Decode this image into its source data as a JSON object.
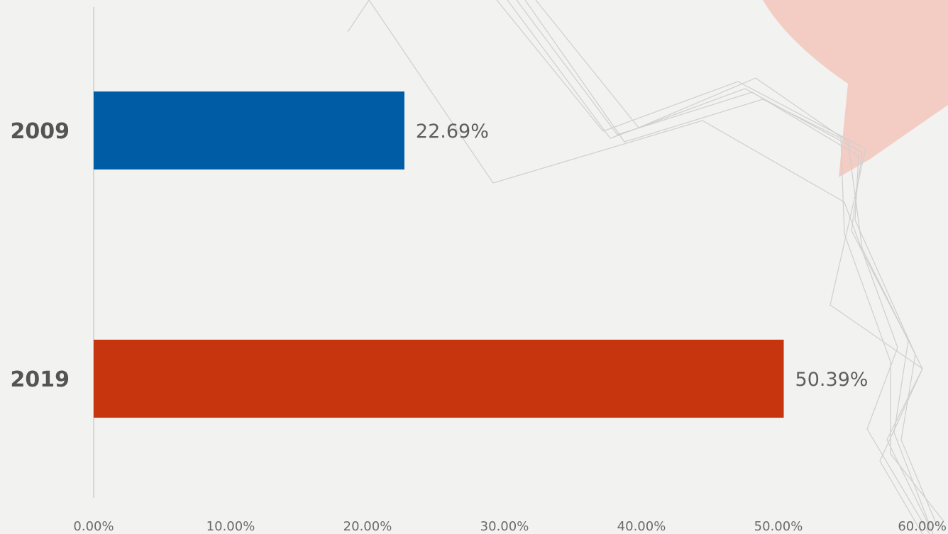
{
  "chart_data": {
    "type": "bar",
    "orientation": "horizontal",
    "categories": [
      "2009",
      "2019"
    ],
    "values": [
      22.69,
      50.39
    ],
    "value_labels": [
      "22.69%",
      "50.39%"
    ],
    "colors": [
      "#005ca5",
      "#c7350f"
    ],
    "xlim": [
      0,
      60
    ],
    "xticks": [
      {
        "value": 0,
        "label": "0.00%"
      },
      {
        "value": 10,
        "label": "10.00%"
      },
      {
        "value": 20,
        "label": "20.00%"
      },
      {
        "value": 30,
        "label": "30.00%"
      },
      {
        "value": 40,
        "label": "40.00%"
      },
      {
        "value": 50,
        "label": "50.00%"
      },
      {
        "value": 60,
        "label": "60.00%"
      }
    ],
    "grid": false,
    "legend": "none",
    "title": "",
    "xlabel": "",
    "ylabel": ""
  },
  "decor": {
    "accent_color": "#f3c7bb",
    "background_color": "#f2f2f1"
  }
}
